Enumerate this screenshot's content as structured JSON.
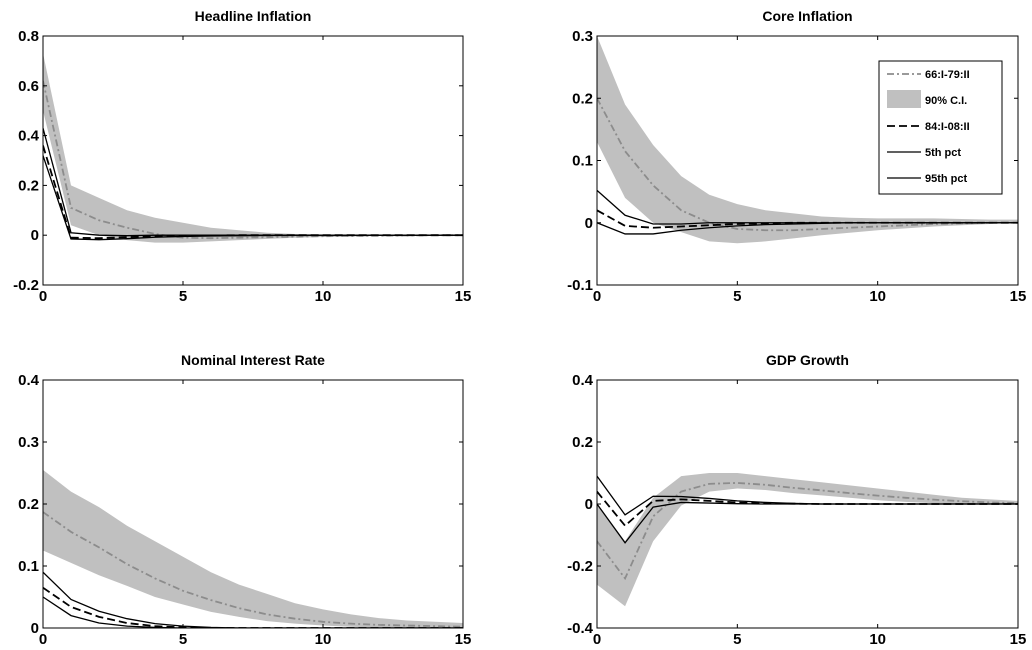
{
  "chart_data": [
    {
      "type": "line",
      "title": "Headline Inflation",
      "xlim": [
        0,
        15
      ],
      "ylim": [
        -0.2,
        0.8
      ],
      "xticks": [
        0,
        5,
        10,
        15
      ],
      "xtick_labels": [
        "0",
        "5",
        "10",
        "15"
      ],
      "yticks": [
        -0.2,
        0,
        0.2,
        0.4,
        0.6,
        0.8
      ],
      "ytick_labels": [
        "-0.2",
        "0",
        "0.2",
        "0.4",
        "0.6",
        "0.8"
      ],
      "x": [
        0,
        1,
        2,
        3,
        4,
        5,
        6,
        7,
        8,
        9,
        10,
        11,
        12,
        13,
        14,
        15
      ],
      "band": {
        "upper": [
          0.73,
          0.2,
          0.15,
          0.1,
          0.07,
          0.05,
          0.03,
          0.02,
          0.01,
          0.005,
          0.003,
          0.002,
          0.001,
          0.001,
          0.0,
          0.0
        ],
        "lower": [
          0.5,
          0.04,
          0.0,
          -0.02,
          -0.03,
          -0.03,
          -0.025,
          -0.02,
          -0.015,
          -0.01,
          -0.007,
          -0.005,
          -0.003,
          -0.002,
          -0.001,
          0.0
        ]
      },
      "series": [
        {
          "values": [
            0.62,
            0.11,
            0.06,
            0.03,
            0.005,
            -0.01,
            -0.012,
            -0.01,
            -0.008,
            -0.006,
            -0.004,
            -0.003,
            -0.002,
            -0.001,
            0.0,
            0.0
          ]
        },
        {
          "values": [
            0.36,
            -0.01,
            -0.012,
            -0.008,
            -0.004,
            -0.002,
            -0.001,
            0.0,
            0.0,
            0.0,
            0.0,
            0.0,
            0.0,
            0.0,
            0.0,
            0.0
          ]
        },
        {
          "values": [
            0.32,
            -0.015,
            -0.018,
            -0.014,
            -0.008,
            -0.005,
            -0.003,
            -0.002,
            -0.001,
            0.0,
            0.0,
            0.0,
            0.0,
            0.0,
            0.0,
            0.0
          ]
        },
        {
          "values": [
            0.43,
            0.01,
            0.0,
            -0.002,
            0.0,
            0.0,
            0.0,
            0.0,
            0.0,
            0.0,
            0.0,
            0.0,
            0.0,
            0.0,
            0.0,
            0.0
          ]
        }
      ]
    },
    {
      "type": "line",
      "title": "Core Inflation",
      "xlim": [
        0,
        15
      ],
      "ylim": [
        -0.1,
        0.3
      ],
      "xticks": [
        0,
        5,
        10,
        15
      ],
      "xtick_labels": [
        "0",
        "5",
        "10",
        "15"
      ],
      "yticks": [
        -0.1,
        0,
        0.1,
        0.2,
        0.3
      ],
      "ytick_labels": [
        "-0.1",
        "0",
        "0.1",
        "0.2",
        "0.3"
      ],
      "x": [
        0,
        1,
        2,
        3,
        4,
        5,
        6,
        7,
        8,
        9,
        10,
        11,
        12,
        13,
        14,
        15
      ],
      "band": {
        "upper": [
          0.3,
          0.19,
          0.125,
          0.075,
          0.045,
          0.03,
          0.02,
          0.015,
          0.01,
          0.008,
          0.007,
          0.007,
          0.007,
          0.006,
          0.005,
          0.005
        ],
        "lower": [
          0.13,
          0.04,
          0.0,
          -0.015,
          -0.03,
          -0.033,
          -0.03,
          -0.025,
          -0.02,
          -0.016,
          -0.012,
          -0.009,
          -0.006,
          -0.004,
          -0.002,
          0.0
        ]
      },
      "series": [
        {
          "values": [
            0.2,
            0.115,
            0.06,
            0.02,
            0.0,
            -0.01,
            -0.012,
            -0.012,
            -0.01,
            -0.008,
            -0.006,
            -0.004,
            -0.002,
            -0.001,
            0.0,
            0.0
          ]
        },
        {
          "values": [
            0.02,
            -0.005,
            -0.008,
            -0.006,
            -0.004,
            -0.002,
            -0.001,
            0.0,
            0.0,
            0.0,
            0.0,
            0.0,
            0.0,
            0.0,
            0.0,
            0.0
          ]
        },
        {
          "values": [
            0.0,
            -0.018,
            -0.018,
            -0.012,
            -0.008,
            -0.005,
            -0.003,
            -0.002,
            -0.001,
            0.0,
            0.0,
            0.0,
            0.0,
            0.0,
            0.0,
            0.0
          ]
        },
        {
          "values": [
            0.052,
            0.012,
            -0.002,
            -0.002,
            0.0,
            0.0,
            0.0,
            0.0,
            0.0,
            0.0,
            0.0,
            0.0,
            0.0,
            0.0,
            0.0,
            0.0
          ]
        }
      ]
    },
    {
      "type": "line",
      "title": "Nominal Interest Rate",
      "xlim": [
        0,
        15
      ],
      "ylim": [
        0,
        0.4
      ],
      "xticks": [
        0,
        5,
        10,
        15
      ],
      "xtick_labels": [
        "0",
        "5",
        "10",
        "15"
      ],
      "yticks": [
        0,
        0.1,
        0.2,
        0.3,
        0.4
      ],
      "ytick_labels": [
        "0",
        "0.1",
        "0.2",
        "0.3",
        "0.4"
      ],
      "x": [
        0,
        1,
        2,
        3,
        4,
        5,
        6,
        7,
        8,
        9,
        10,
        11,
        12,
        13,
        14,
        15
      ],
      "band": {
        "upper": [
          0.255,
          0.22,
          0.195,
          0.165,
          0.14,
          0.115,
          0.09,
          0.07,
          0.055,
          0.04,
          0.03,
          0.022,
          0.016,
          0.012,
          0.01,
          0.008
        ],
        "lower": [
          0.125,
          0.105,
          0.085,
          0.068,
          0.05,
          0.038,
          0.026,
          0.018,
          0.011,
          0.007,
          0.004,
          0.002,
          0.001,
          0.0,
          0.0,
          0.0
        ]
      },
      "series": [
        {
          "values": [
            0.187,
            0.155,
            0.13,
            0.103,
            0.08,
            0.06,
            0.045,
            0.032,
            0.022,
            0.015,
            0.01,
            0.007,
            0.005,
            0.004,
            0.003,
            0.002
          ]
        },
        {
          "values": [
            0.065,
            0.034,
            0.018,
            0.008,
            0.003,
            0.001,
            0.0,
            0.0,
            0.0,
            0.0,
            0.0,
            0.0,
            0.0,
            0.0,
            0.0,
            0.0
          ]
        },
        {
          "values": [
            0.05,
            0.02,
            0.008,
            0.003,
            0.001,
            0.0,
            0.0,
            0.0,
            0.0,
            0.0,
            0.0,
            0.0,
            0.0,
            0.0,
            0.0,
            0.0
          ]
        },
        {
          "values": [
            0.09,
            0.046,
            0.027,
            0.015,
            0.007,
            0.003,
            0.001,
            0.0,
            0.0,
            0.0,
            0.0,
            0.0,
            0.0,
            0.0,
            0.0,
            0.0
          ]
        }
      ]
    },
    {
      "type": "line",
      "title": "GDP Growth",
      "xlim": [
        0,
        15
      ],
      "ylim": [
        -0.4,
        0.4
      ],
      "xticks": [
        0,
        5,
        10,
        15
      ],
      "xtick_labels": [
        "0",
        "5",
        "10",
        "15"
      ],
      "yticks": [
        -0.4,
        -0.2,
        0,
        0.2,
        0.4
      ],
      "ytick_labels": [
        "-0.4",
        "-0.2",
        "0",
        "0.2",
        "0.4"
      ],
      "x": [
        0,
        1,
        2,
        3,
        4,
        5,
        6,
        7,
        8,
        9,
        10,
        11,
        12,
        13,
        14,
        15
      ],
      "band": {
        "upper": [
          0.0,
          -0.12,
          0.02,
          0.09,
          0.1,
          0.1,
          0.09,
          0.08,
          0.07,
          0.06,
          0.05,
          0.04,
          0.03,
          0.02,
          0.015,
          0.01
        ],
        "lower": [
          -0.26,
          -0.33,
          -0.12,
          -0.005,
          0.04,
          0.05,
          0.045,
          0.035,
          0.028,
          0.02,
          0.012,
          0.007,
          0.003,
          0.001,
          0.0,
          0.0
        ]
      },
      "series": [
        {
          "values": [
            -0.12,
            -0.24,
            -0.04,
            0.04,
            0.065,
            0.068,
            0.062,
            0.052,
            0.044,
            0.035,
            0.027,
            0.02,
            0.014,
            0.009,
            0.005,
            0.003
          ]
        },
        {
          "values": [
            0.04,
            -0.07,
            0.01,
            0.015,
            0.01,
            0.005,
            0.002,
            0.001,
            0.0,
            0.0,
            0.0,
            0.0,
            0.0,
            0.0,
            0.0,
            0.0
          ]
        },
        {
          "values": [
            0.0,
            -0.125,
            -0.01,
            0.005,
            0.003,
            0.001,
            0.0,
            0.0,
            0.0,
            0.0,
            0.0,
            0.0,
            0.0,
            0.0,
            0.0,
            0.0
          ]
        },
        {
          "values": [
            0.09,
            -0.035,
            0.025,
            0.024,
            0.018,
            0.01,
            0.005,
            0.002,
            0.0,
            0.0,
            0.0,
            0.0,
            0.0,
            0.0,
            0.0,
            0.0
          ]
        }
      ],
      "legend": {
        "placement": "top-right",
        "entries": [
          {
            "label": "66:I-79:II",
            "style": "dash-dot-gray"
          },
          {
            "label": "90% C.I.",
            "style": "band"
          },
          {
            "label": "84:I-08:II",
            "style": "dashed-black"
          },
          {
            "label": "5th pct",
            "style": "solid-black"
          },
          {
            "label": "95th pct",
            "style": "solid-black"
          }
        ]
      }
    }
  ],
  "styles": {
    "band_color": "#c0c0c0",
    "early_line_color": "#8c8c8c",
    "late_line_color": "#000000",
    "axis_color": "#000000"
  }
}
